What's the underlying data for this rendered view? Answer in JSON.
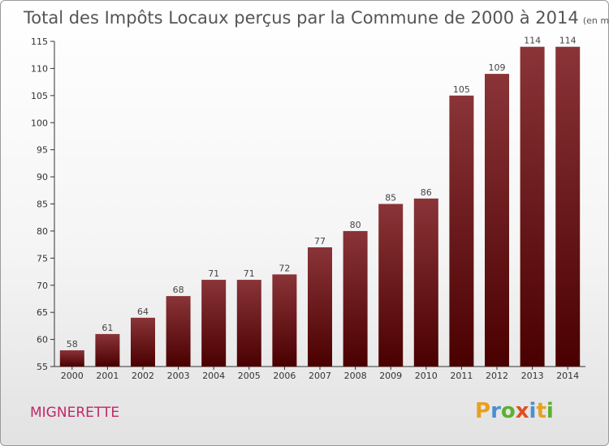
{
  "chart_data": {
    "type": "bar",
    "title": "Total des Impôts Locaux perçus par la Commune de 2000 à 2014",
    "unit_note": "(en milliers d'€)",
    "xlabel": "",
    "ylabel": "",
    "ylim": [
      55,
      115
    ],
    "yticks": [
      55,
      60,
      65,
      70,
      75,
      80,
      85,
      90,
      95,
      100,
      105,
      110,
      115
    ],
    "categories": [
      "2000",
      "2001",
      "2002",
      "2003",
      "2004",
      "2005",
      "2006",
      "2007",
      "2008",
      "2009",
      "2010",
      "2011",
      "2012",
      "2013",
      "2014"
    ],
    "values": [
      58,
      61,
      64,
      68,
      71,
      71,
      72,
      77,
      80,
      85,
      86,
      105,
      109,
      114,
      114
    ],
    "bar_color_light": "#8a3438",
    "bar_color_dark": "#4a0000",
    "grid": false
  },
  "commune": "MIGNERETTE",
  "brand": {
    "letters": [
      "P",
      "r",
      "o",
      "x",
      "i",
      "t",
      "i"
    ],
    "colors": [
      "#e8a020",
      "#4a90d0",
      "#5cb030",
      "#e05020",
      "#4a90d0",
      "#e8a020",
      "#5cb030"
    ]
  }
}
